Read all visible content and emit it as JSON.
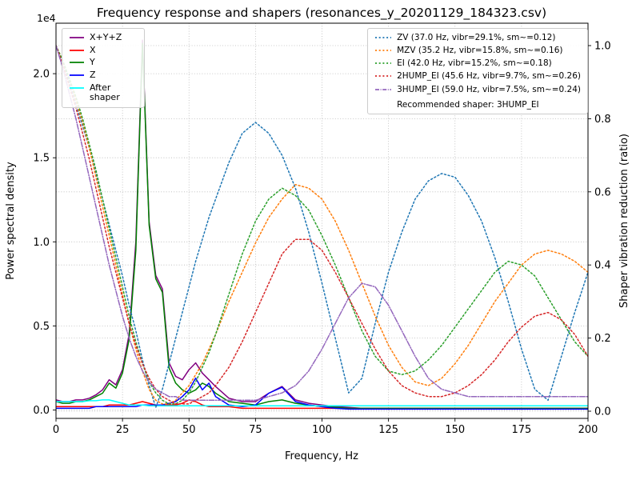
{
  "figure": {
    "title": "Frequency response and shapers (resonances_y_20201129_184323.csv)",
    "xlabel": "Frequency, Hz",
    "ylabel_left": "Power spectral density",
    "ylabel_right": "Shaper vibration reduction (ratio)",
    "offset_text": "1e4"
  },
  "chart_data": {
    "type": "line",
    "title": "Frequency response and shapers (resonances_y_20201129_184323.csv)",
    "xlabel": "Frequency, Hz",
    "ylabel_left": "Power spectral density",
    "ylabel_right": "Shaper vibration reduction (ratio)",
    "grid": true,
    "xlim": [
      0,
      200
    ],
    "ylim_left": [
      0,
      2.3
    ],
    "ylim_left_scale": "1e4",
    "ylim_right": [
      0,
      1.0
    ],
    "xticks": [
      0,
      25,
      50,
      75,
      100,
      125,
      150,
      175,
      200
    ],
    "xtick_labels": [
      "0",
      "25",
      "50",
      "75",
      "100",
      "125",
      "150",
      "175",
      "200"
    ],
    "yticks_left": [
      0.0,
      0.5,
      1.0,
      1.5,
      2.0
    ],
    "ytick_labels_left": [
      "0.0",
      "0.5",
      "1.0",
      "1.5",
      "2.0"
    ],
    "yticks_right": [
      0.0,
      0.2,
      0.4,
      0.6,
      0.8,
      1.0
    ],
    "ytick_labels_right": [
      "0.0",
      "0.2",
      "0.4",
      "0.6",
      "0.8",
      "1.0"
    ],
    "legend_note": "Recommended shaper: 3HUMP_EI",
    "recommended_shaper": "3HUMP_EI",
    "x": [
      0,
      2.5,
      5,
      7.5,
      10,
      12.5,
      15,
      17.5,
      20,
      22.5,
      25,
      27.5,
      30,
      32.5,
      35,
      37.5,
      40,
      42.5,
      45,
      47.5,
      50,
      52.5,
      55,
      57.5,
      60,
      65,
      70,
      75,
      80,
      85,
      90,
      95,
      100,
      105,
      110,
      115,
      120,
      125,
      130,
      135,
      140,
      145,
      150,
      155,
      160,
      165,
      170,
      175,
      180,
      185,
      190,
      195,
      200
    ],
    "series": [
      {
        "id": "psd-xyz",
        "label": "X+Y+Z",
        "color": "#800080",
        "style": "solid",
        "axis": "left",
        "values": [
          0.06,
          0.05,
          0.05,
          0.06,
          0.06,
          0.07,
          0.09,
          0.12,
          0.18,
          0.15,
          0.24,
          0.45,
          1.0,
          2.2,
          1.12,
          0.8,
          0.72,
          0.28,
          0.2,
          0.18,
          0.24,
          0.28,
          0.22,
          0.18,
          0.14,
          0.07,
          0.05,
          0.05,
          0.1,
          0.14,
          0.06,
          0.04,
          0.03,
          0.02,
          0.015,
          0.01,
          0.01,
          0.01,
          0.01,
          0.01,
          0.01,
          0.01,
          0.01,
          0.01,
          0.01,
          0.01,
          0.01,
          0.01,
          0.01,
          0.01,
          0.01,
          0.01,
          0.01
        ]
      },
      {
        "id": "psd-x",
        "label": "X",
        "color": "#ff0000",
        "style": "solid",
        "axis": "left",
        "values": [
          0.02,
          0.02,
          0.02,
          0.02,
          0.02,
          0.02,
          0.02,
          0.02,
          0.03,
          0.03,
          0.03,
          0.03,
          0.04,
          0.05,
          0.04,
          0.03,
          0.03,
          0.03,
          0.03,
          0.04,
          0.06,
          0.05,
          0.03,
          0.02,
          0.02,
          0.02,
          0.01,
          0.01,
          0.01,
          0.01,
          0.01,
          0.01,
          0.01,
          0.01,
          0.01,
          0.01,
          0.01,
          0.01,
          0.01,
          0.01,
          0.01,
          0.01,
          0.01,
          0.01,
          0.01,
          0.01,
          0.01,
          0.01,
          0.01,
          0.01,
          0.01,
          0.01,
          0.01
        ]
      },
      {
        "id": "psd-y",
        "label": "Y",
        "color": "#008000",
        "style": "solid",
        "axis": "left",
        "values": [
          0.05,
          0.04,
          0.04,
          0.05,
          0.05,
          0.06,
          0.08,
          0.1,
          0.16,
          0.13,
          0.22,
          0.42,
          0.95,
          2.18,
          1.1,
          0.78,
          0.7,
          0.25,
          0.16,
          0.12,
          0.1,
          0.12,
          0.16,
          0.14,
          0.1,
          0.05,
          0.04,
          0.03,
          0.05,
          0.06,
          0.04,
          0.03,
          0.02,
          0.015,
          0.01,
          0.01,
          0.01,
          0.01,
          0.01,
          0.01,
          0.01,
          0.01,
          0.01,
          0.01,
          0.01,
          0.01,
          0.01,
          0.01,
          0.01,
          0.01,
          0.01,
          0.01,
          0.01
        ]
      },
      {
        "id": "psd-z",
        "label": "Z",
        "color": "#0000ff",
        "style": "solid",
        "axis": "left",
        "values": [
          0.01,
          0.01,
          0.01,
          0.01,
          0.01,
          0.01,
          0.02,
          0.02,
          0.02,
          0.02,
          0.02,
          0.02,
          0.02,
          0.03,
          0.03,
          0.03,
          0.03,
          0.04,
          0.05,
          0.08,
          0.12,
          0.19,
          0.12,
          0.16,
          0.08,
          0.03,
          0.02,
          0.03,
          0.1,
          0.135,
          0.05,
          0.03,
          0.02,
          0.01,
          0.005,
          0.005,
          0.005,
          0.005,
          0.005,
          0.005,
          0.005,
          0.005,
          0.005,
          0.005,
          0.005,
          0.005,
          0.005,
          0.005,
          0.005,
          0.005,
          0.005,
          0.005,
          0.005
        ]
      },
      {
        "id": "psd-after-shaper",
        "label": "After shaper",
        "color": "#00ffff",
        "style": "solid",
        "axis": "left",
        "values": [
          0.05,
          0.05,
          0.05,
          0.05,
          0.05,
          0.055,
          0.055,
          0.06,
          0.06,
          0.05,
          0.04,
          0.03,
          0.03,
          0.03,
          0.025,
          0.025,
          0.025,
          0.025,
          0.025,
          0.025,
          0.025,
          0.025,
          0.025,
          0.025,
          0.025,
          0.025,
          0.025,
          0.025,
          0.025,
          0.025,
          0.025,
          0.025,
          0.025,
          0.025,
          0.025,
          0.025,
          0.025,
          0.025,
          0.025,
          0.025,
          0.025,
          0.025,
          0.025,
          0.025,
          0.025,
          0.025,
          0.025,
          0.025,
          0.025,
          0.025,
          0.025,
          0.025,
          0.025
        ]
      },
      {
        "id": "shaper-zv",
        "label": "ZV (37.0 Hz, vibr=29.1%, sm~=0.12)",
        "color": "#1f77b4",
        "style": "dotted",
        "axis": "right",
        "values": [
          1.0,
          0.95,
          0.9,
          0.84,
          0.78,
          0.72,
          0.65,
          0.58,
          0.51,
          0.44,
          0.37,
          0.29,
          0.22,
          0.14,
          0.07,
          0.01,
          0.06,
          0.13,
          0.2,
          0.27,
          0.34,
          0.41,
          0.47,
          0.53,
          0.58,
          0.68,
          0.76,
          0.79,
          0.76,
          0.7,
          0.61,
          0.49,
          0.35,
          0.2,
          0.05,
          0.09,
          0.24,
          0.38,
          0.49,
          0.58,
          0.63,
          0.65,
          0.64,
          0.59,
          0.52,
          0.42,
          0.3,
          0.17,
          0.06,
          0.03,
          0.15,
          0.27,
          0.38
        ]
      },
      {
        "id": "shaper-mzv",
        "label": "MZV (35.2 Hz, vibr=15.8%, sm~=0.16)",
        "color": "#ff7f0e",
        "style": "dotted",
        "axis": "right",
        "values": [
          1.0,
          0.96,
          0.91,
          0.85,
          0.79,
          0.72,
          0.64,
          0.56,
          0.48,
          0.4,
          0.32,
          0.24,
          0.17,
          0.11,
          0.06,
          0.03,
          0.02,
          0.02,
          0.03,
          0.05,
          0.07,
          0.1,
          0.13,
          0.17,
          0.21,
          0.3,
          0.38,
          0.46,
          0.53,
          0.58,
          0.62,
          0.61,
          0.58,
          0.52,
          0.44,
          0.35,
          0.26,
          0.18,
          0.12,
          0.08,
          0.07,
          0.09,
          0.13,
          0.18,
          0.24,
          0.3,
          0.35,
          0.4,
          0.43,
          0.44,
          0.43,
          0.41,
          0.38
        ]
      },
      {
        "id": "shaper-ei",
        "label": "EI (42.0 Hz, vibr=15.2%, sm~=0.18)",
        "color": "#2ca02c",
        "style": "dotted",
        "axis": "right",
        "values": [
          1.0,
          0.96,
          0.91,
          0.86,
          0.8,
          0.73,
          0.66,
          0.58,
          0.5,
          0.42,
          0.34,
          0.26,
          0.19,
          0.13,
          0.08,
          0.05,
          0.03,
          0.02,
          0.02,
          0.03,
          0.05,
          0.08,
          0.12,
          0.16,
          0.21,
          0.32,
          0.43,
          0.52,
          0.58,
          0.61,
          0.59,
          0.55,
          0.48,
          0.4,
          0.31,
          0.22,
          0.15,
          0.11,
          0.1,
          0.11,
          0.14,
          0.18,
          0.23,
          0.28,
          0.33,
          0.38,
          0.41,
          0.4,
          0.37,
          0.31,
          0.25,
          0.19,
          0.15
        ]
      },
      {
        "id": "shaper-2hump-ei",
        "label": "2HUMP_EI (45.6 Hz, vibr=9.7%, sm~=0.26)",
        "color": "#d62728",
        "style": "dotted",
        "axis": "right",
        "values": [
          1.0,
          0.95,
          0.89,
          0.83,
          0.76,
          0.69,
          0.61,
          0.53,
          0.45,
          0.38,
          0.31,
          0.24,
          0.18,
          0.13,
          0.09,
          0.06,
          0.04,
          0.03,
          0.02,
          0.02,
          0.02,
          0.03,
          0.04,
          0.05,
          0.07,
          0.12,
          0.19,
          0.27,
          0.35,
          0.43,
          0.47,
          0.47,
          0.44,
          0.38,
          0.31,
          0.24,
          0.17,
          0.11,
          0.07,
          0.05,
          0.04,
          0.04,
          0.05,
          0.07,
          0.1,
          0.14,
          0.19,
          0.23,
          0.26,
          0.27,
          0.25,
          0.21,
          0.15
        ]
      },
      {
        "id": "shaper-3hump-ei",
        "label": "3HUMP_EI (59.0 Hz, vibr=7.5%, sm~=0.24)",
        "color": "#9467bd",
        "style": "dashdot",
        "axis": "right",
        "values": [
          1.0,
          0.94,
          0.87,
          0.8,
          0.72,
          0.64,
          0.56,
          0.48,
          0.4,
          0.33,
          0.26,
          0.2,
          0.15,
          0.11,
          0.08,
          0.06,
          0.05,
          0.04,
          0.04,
          0.03,
          0.03,
          0.03,
          0.03,
          0.03,
          0.03,
          0.03,
          0.03,
          0.03,
          0.04,
          0.05,
          0.07,
          0.11,
          0.17,
          0.24,
          0.31,
          0.35,
          0.34,
          0.29,
          0.22,
          0.15,
          0.09,
          0.06,
          0.05,
          0.04,
          0.04,
          0.04,
          0.04,
          0.04,
          0.04,
          0.04,
          0.04,
          0.04,
          0.04
        ]
      }
    ]
  }
}
